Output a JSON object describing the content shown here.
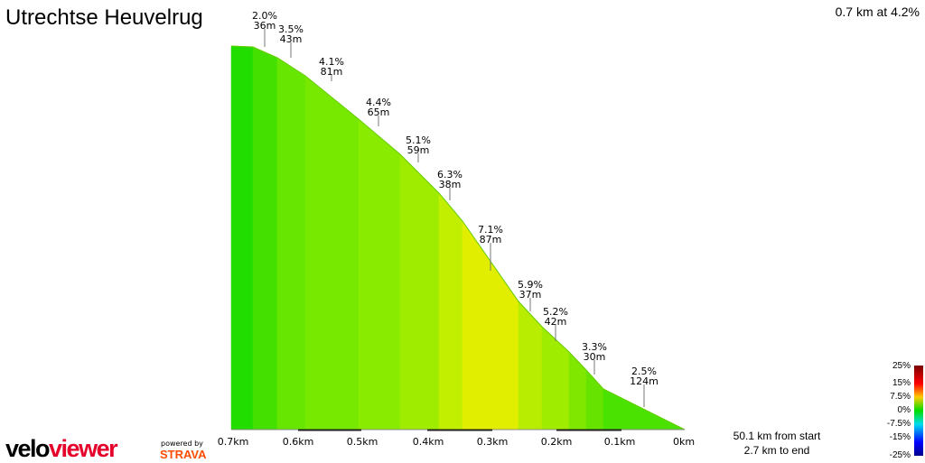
{
  "header": {
    "title": "Utrechtse Heuvelrug",
    "summary": "0.7 km at 4.2%"
  },
  "chart_data": {
    "type": "area",
    "title": "Utrechtse Heuvelrug",
    "xlabel": "distance remaining",
    "x_ticks": [
      "0.7km",
      "0.6km",
      "0.5km",
      "0.4km",
      "0.3km",
      "0.2km",
      "0.1km",
      "0km"
    ],
    "segments": [
      {
        "grade": "2.0%",
        "length": "36m"
      },
      {
        "grade": "3.5%",
        "length": "43m"
      },
      {
        "grade": "4.1%",
        "length": "81m"
      },
      {
        "grade": "4.4%",
        "length": "65m"
      },
      {
        "grade": "5.1%",
        "length": "59m"
      },
      {
        "grade": "6.3%",
        "length": "38m"
      },
      {
        "grade": "7.1%",
        "length": "87m"
      },
      {
        "grade": "5.9%",
        "length": "37m"
      },
      {
        "grade": "5.2%",
        "length": "42m"
      },
      {
        "grade": "3.3%",
        "length": "30m"
      },
      {
        "grade": "2.5%",
        "length": "124m"
      }
    ],
    "legend": [
      "25%",
      "15%",
      "7.5%",
      "0%",
      "-7.5%",
      "-15%",
      "-25%"
    ]
  },
  "info": {
    "from_start": "50.1 km from start",
    "to_end": "2.7 km to end"
  },
  "branding": {
    "logo_velo": "velo",
    "logo_viewer": "viewer",
    "powered_by": "powered by",
    "strava": "STRAVA"
  },
  "colors": {
    "profile_stroke": "#66cc00",
    "logo_red": "#e4002b"
  }
}
